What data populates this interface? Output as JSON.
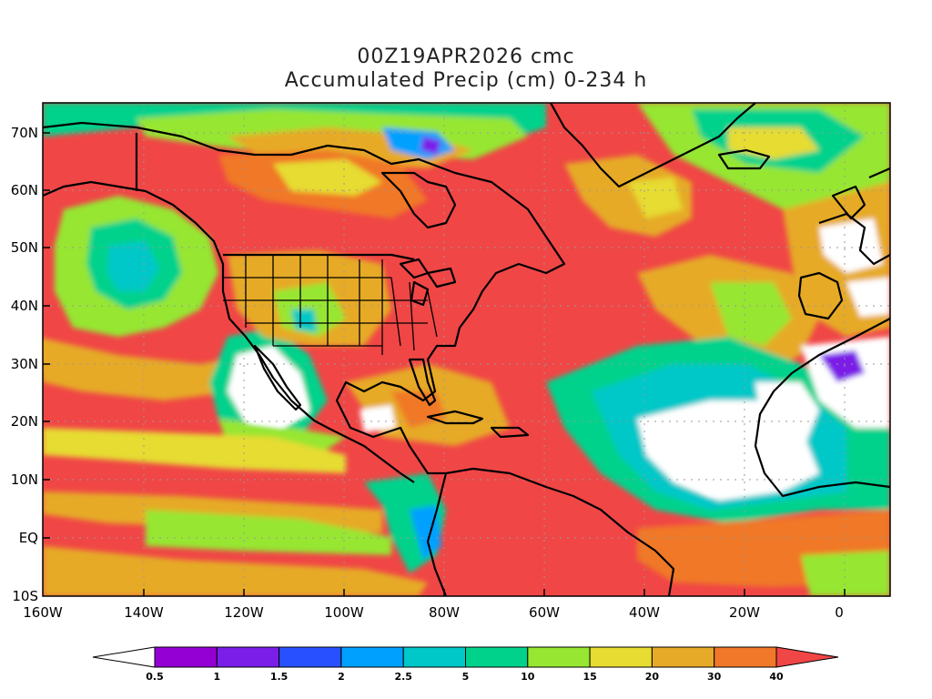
{
  "title": "00Z19APR2026 cmc",
  "subtitle": "Accumulated Precip (cm) 0-234 h",
  "axes": {
    "lat_ticks": [
      "70N",
      "60N",
      "50N",
      "40N",
      "30N",
      "20N",
      "10N",
      "EQ",
      "10S"
    ],
    "lon_ticks": [
      "160W",
      "140W",
      "120W",
      "100W",
      "80W",
      "60W",
      "40W",
      "20W",
      "0"
    ]
  },
  "colorbar": {
    "levels": [
      "0.5",
      "1",
      "1.5",
      "2",
      "2.5",
      "5",
      "10",
      "15",
      "20",
      "30",
      "40"
    ],
    "colors": [
      "#ffffff",
      "#9400d3",
      "#7b1ee8",
      "#2850ff",
      "#00a0ff",
      "#00c8c8",
      "#00d28c",
      "#96e632",
      "#e6dc32",
      "#e6aa28",
      "#f07828",
      "#f04646"
    ]
  }
}
